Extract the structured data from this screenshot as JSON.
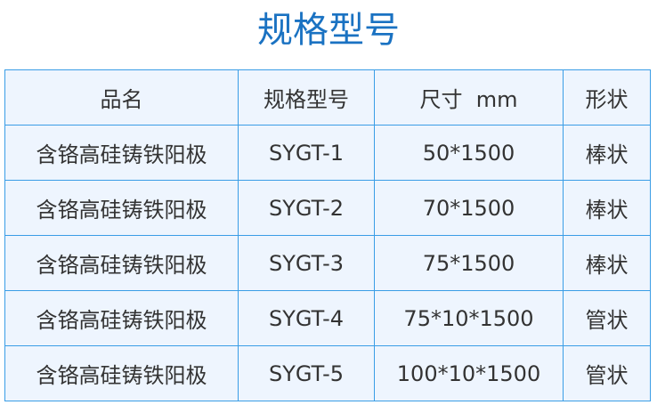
{
  "title": "规格型号",
  "table": {
    "headers": [
      "品名",
      "规格型号",
      "尺寸  mm",
      "形状"
    ],
    "rows": [
      [
        "含铬高硅铸铁阳极",
        "SYGT-1",
        "50*1500",
        "棒状"
      ],
      [
        "含铬高硅铸铁阳极",
        "SYGT-2",
        "70*1500",
        "棒状"
      ],
      [
        "含铬高硅铸铁阳极",
        "SYGT-3",
        "75*1500",
        "棒状"
      ],
      [
        "含铬高硅铸铁阳极",
        "SYGT-4",
        "75*10*1500",
        "管状"
      ],
      [
        "含铬高硅铸铁阳极",
        "SYGT-5",
        "100*10*1500",
        "管状"
      ]
    ]
  },
  "colors": {
    "title": "#1a72c2",
    "border": "#3a9de6",
    "cell_bg": "#eef5fe"
  }
}
